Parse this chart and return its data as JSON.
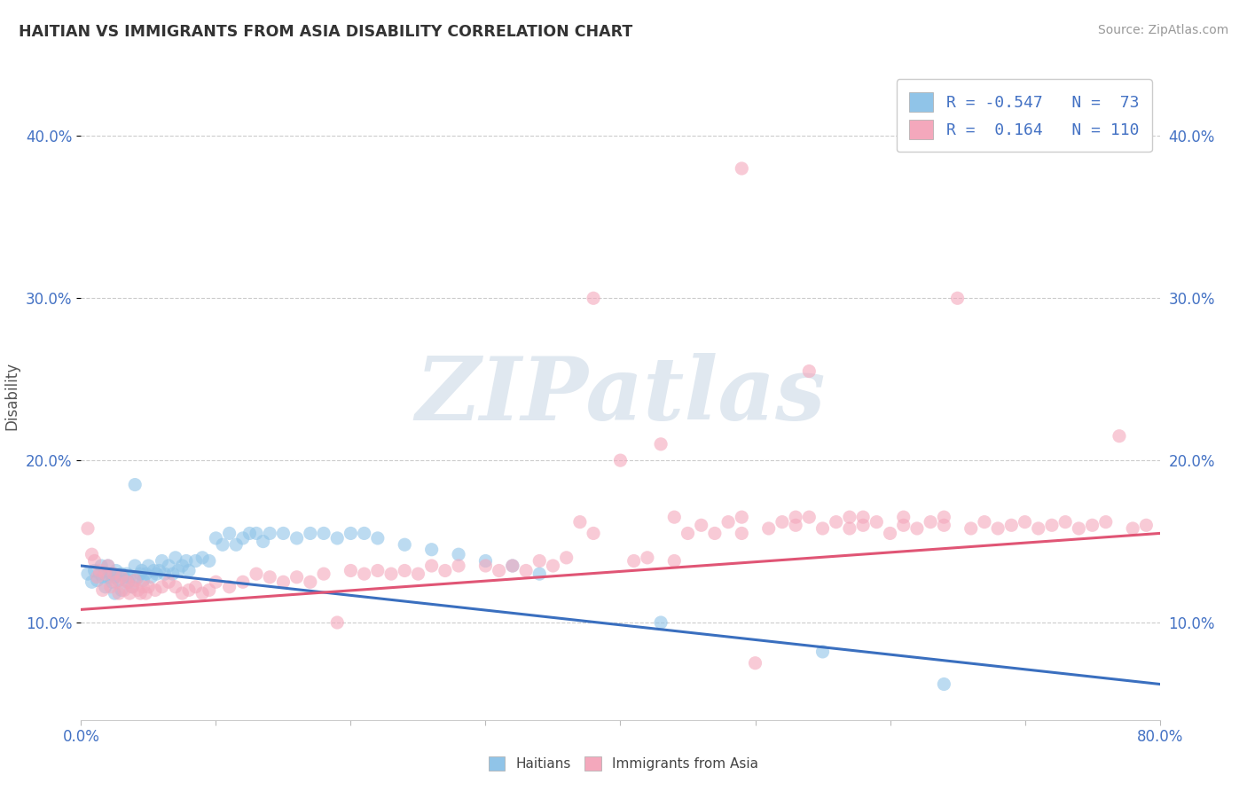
{
  "title": "HAITIAN VS IMMIGRANTS FROM ASIA DISABILITY CORRELATION CHART",
  "source": "Source: ZipAtlas.com",
  "ylabel": "Disability",
  "blue_color": "#90c4e8",
  "pink_color": "#f4a8bc",
  "blue_line_color": "#3a6fbf",
  "pink_line_color": "#e05575",
  "background_color": "#ffffff",
  "watermark_text": "ZIPatlas",
  "x_min": 0.0,
  "x_max": 0.8,
  "y_min": 0.04,
  "y_max": 0.44,
  "legend_r_blue": "-0.547",
  "legend_r_pink": " 0.164",
  "legend_n_blue": " 73",
  "legend_n_pink": "110",
  "blue_x": [
    0.005,
    0.008,
    0.01,
    0.012,
    0.014,
    0.015,
    0.016,
    0.018,
    0.02,
    0.02,
    0.022,
    0.023,
    0.025,
    0.025,
    0.026,
    0.028,
    0.03,
    0.03,
    0.032,
    0.034,
    0.035,
    0.036,
    0.038,
    0.04,
    0.04,
    0.042,
    0.044,
    0.045,
    0.046,
    0.048,
    0.05,
    0.052,
    0.054,
    0.056,
    0.058,
    0.06,
    0.062,
    0.065,
    0.068,
    0.07,
    0.072,
    0.075,
    0.078,
    0.08,
    0.085,
    0.09,
    0.095,
    0.1,
    0.105,
    0.11,
    0.115,
    0.12,
    0.125,
    0.13,
    0.135,
    0.14,
    0.15,
    0.16,
    0.17,
    0.18,
    0.19,
    0.2,
    0.21,
    0.22,
    0.24,
    0.26,
    0.28,
    0.3,
    0.32,
    0.34,
    0.43,
    0.55,
    0.64
  ],
  "blue_y": [
    0.13,
    0.125,
    0.132,
    0.126,
    0.13,
    0.135,
    0.128,
    0.122,
    0.135,
    0.128,
    0.13,
    0.125,
    0.128,
    0.118,
    0.132,
    0.126,
    0.13,
    0.12,
    0.128,
    0.13,
    0.125,
    0.128,
    0.122,
    0.185,
    0.135,
    0.128,
    0.13,
    0.132,
    0.126,
    0.13,
    0.135,
    0.128,
    0.132,
    0.13,
    0.132,
    0.138,
    0.13,
    0.135,
    0.13,
    0.14,
    0.132,
    0.135,
    0.138,
    0.132,
    0.138,
    0.14,
    0.138,
    0.152,
    0.148,
    0.155,
    0.148,
    0.152,
    0.155,
    0.155,
    0.15,
    0.155,
    0.155,
    0.152,
    0.155,
    0.155,
    0.152,
    0.155,
    0.155,
    0.152,
    0.148,
    0.145,
    0.142,
    0.138,
    0.135,
    0.13,
    0.1,
    0.082,
    0.062
  ],
  "pink_x": [
    0.005,
    0.008,
    0.01,
    0.012,
    0.014,
    0.016,
    0.018,
    0.02,
    0.022,
    0.024,
    0.026,
    0.028,
    0.03,
    0.032,
    0.034,
    0.036,
    0.038,
    0.04,
    0.042,
    0.044,
    0.046,
    0.048,
    0.05,
    0.055,
    0.06,
    0.065,
    0.07,
    0.075,
    0.08,
    0.085,
    0.09,
    0.095,
    0.1,
    0.11,
    0.12,
    0.13,
    0.14,
    0.15,
    0.16,
    0.17,
    0.18,
    0.19,
    0.2,
    0.21,
    0.22,
    0.23,
    0.24,
    0.25,
    0.26,
    0.27,
    0.28,
    0.3,
    0.31,
    0.32,
    0.33,
    0.34,
    0.35,
    0.36,
    0.37,
    0.38,
    0.4,
    0.41,
    0.42,
    0.43,
    0.44,
    0.45,
    0.46,
    0.47,
    0.48,
    0.49,
    0.5,
    0.51,
    0.52,
    0.53,
    0.54,
    0.55,
    0.56,
    0.57,
    0.58,
    0.59,
    0.6,
    0.61,
    0.62,
    0.63,
    0.64,
    0.65,
    0.66,
    0.67,
    0.68,
    0.69,
    0.7,
    0.71,
    0.72,
    0.73,
    0.74,
    0.75,
    0.76,
    0.77,
    0.78,
    0.79,
    0.38,
    0.44,
    0.49,
    0.53,
    0.57,
    0.49,
    0.54,
    0.58,
    0.61,
    0.64
  ],
  "pink_y": [
    0.158,
    0.142,
    0.138,
    0.128,
    0.132,
    0.12,
    0.13,
    0.135,
    0.122,
    0.13,
    0.125,
    0.118,
    0.128,
    0.12,
    0.125,
    0.118,
    0.122,
    0.126,
    0.12,
    0.118,
    0.122,
    0.118,
    0.122,
    0.12,
    0.122,
    0.125,
    0.122,
    0.118,
    0.12,
    0.122,
    0.118,
    0.12,
    0.125,
    0.122,
    0.125,
    0.13,
    0.128,
    0.125,
    0.128,
    0.125,
    0.13,
    0.1,
    0.132,
    0.13,
    0.132,
    0.13,
    0.132,
    0.13,
    0.135,
    0.132,
    0.135,
    0.135,
    0.132,
    0.135,
    0.132,
    0.138,
    0.135,
    0.14,
    0.162,
    0.155,
    0.2,
    0.138,
    0.14,
    0.21,
    0.138,
    0.155,
    0.16,
    0.155,
    0.162,
    0.155,
    0.075,
    0.158,
    0.162,
    0.16,
    0.255,
    0.158,
    0.162,
    0.158,
    0.16,
    0.162,
    0.155,
    0.16,
    0.158,
    0.162,
    0.16,
    0.3,
    0.158,
    0.162,
    0.158,
    0.16,
    0.162,
    0.158,
    0.16,
    0.162,
    0.158,
    0.16,
    0.162,
    0.215,
    0.158,
    0.16,
    0.3,
    0.165,
    0.165,
    0.165,
    0.165,
    0.38,
    0.165,
    0.165,
    0.165,
    0.165
  ]
}
